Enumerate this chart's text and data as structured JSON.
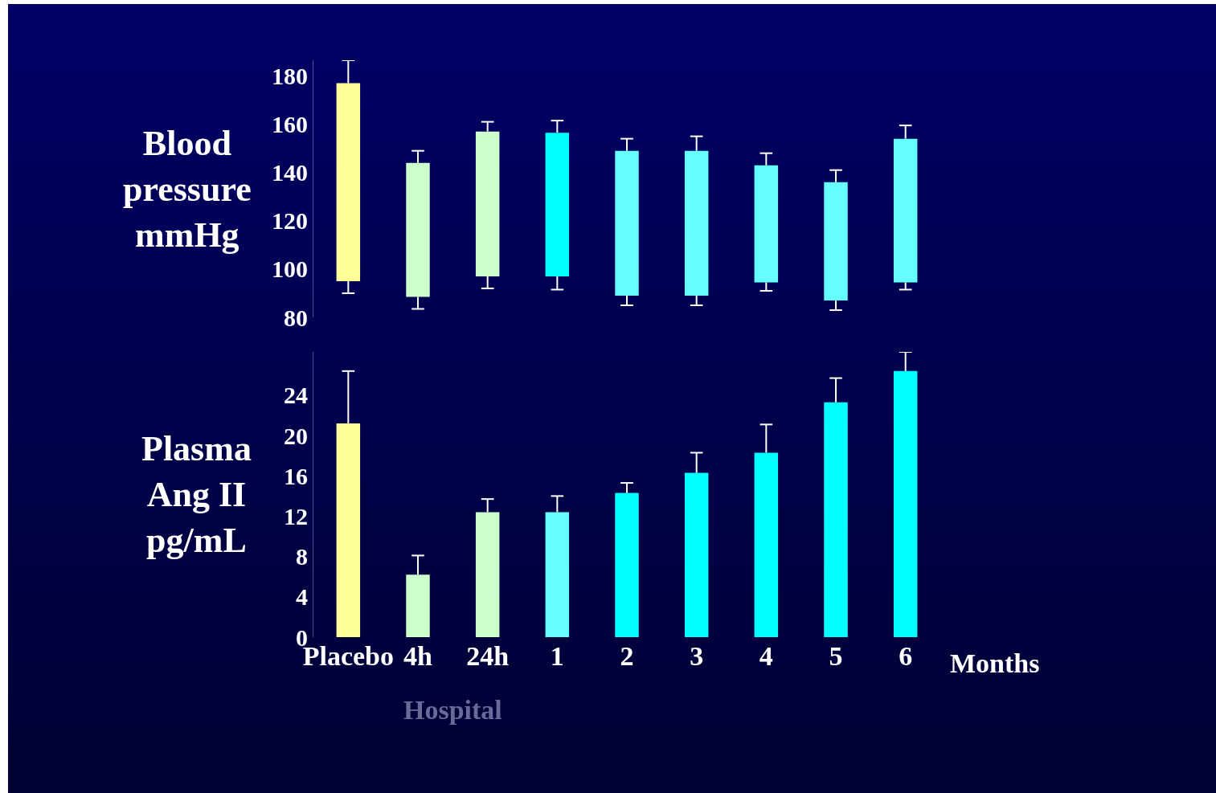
{
  "chart_data": [
    {
      "type": "bar",
      "ylabel": "Blood\npressure\nmmHg",
      "categories": [
        null,
        null,
        null,
        null,
        null,
        null,
        null,
        null,
        null
      ],
      "base": [
        95,
        88.5,
        97,
        97,
        89,
        89,
        94.5,
        87,
        94.5
      ],
      "values": [
        82,
        55.5,
        60,
        59.5,
        60,
        60,
        48.5,
        49,
        59.5
      ],
      "errors": [
        [
          90,
          186.5
        ],
        [
          83.5,
          149
        ],
        [
          92,
          161
        ],
        [
          91.5,
          161.5
        ],
        [
          85,
          154
        ],
        [
          85,
          155
        ],
        [
          91,
          148
        ],
        [
          83,
          141
        ],
        [
          91.5,
          159.5
        ]
      ],
      "colors": [
        "#ffff99",
        "#ccffcc",
        "#ccffcc",
        "#00ffff",
        "#66ffff",
        "#66ffff",
        "#66ffff",
        "#66ffff",
        "#66ffff"
      ],
      "ylim": [
        80,
        186.5
      ],
      "yticks": [
        80,
        100,
        120,
        140,
        160,
        180
      ],
      "grid": false
    },
    {
      "type": "bar",
      "ylabel": "Plasma\nAng II\npg/mL",
      "categories": [
        "Placebo",
        "4h",
        "24h",
        "1",
        "2",
        "3",
        "4",
        "5",
        "6"
      ],
      "values": [
        21.2,
        6.2,
        12.4,
        12.4,
        14.3,
        16.3,
        18.3,
        23.3,
        26.4
      ],
      "errors": [
        [
          21.2,
          26.4
        ],
        [
          6.2,
          8.1
        ],
        [
          12.4,
          13.7
        ],
        [
          12.4,
          14
        ],
        [
          14.3,
          15.3
        ],
        [
          16.3,
          18.3
        ],
        [
          18.3,
          21.1
        ],
        [
          23.3,
          25.7
        ],
        [
          26.4,
          28.3
        ]
      ],
      "colors": [
        "#ffff99",
        "#ccffcc",
        "#ccffcc",
        "#66ffff",
        "#00ffff",
        "#00ffff",
        "#00ffff",
        "#00ffff",
        "#00ffff"
      ],
      "ylim": [
        0,
        28.3
      ],
      "yticks": [
        0,
        4,
        8,
        12,
        16,
        20,
        24
      ],
      "grid": false,
      "annotations": [
        "Months",
        "Hospital"
      ]
    }
  ]
}
